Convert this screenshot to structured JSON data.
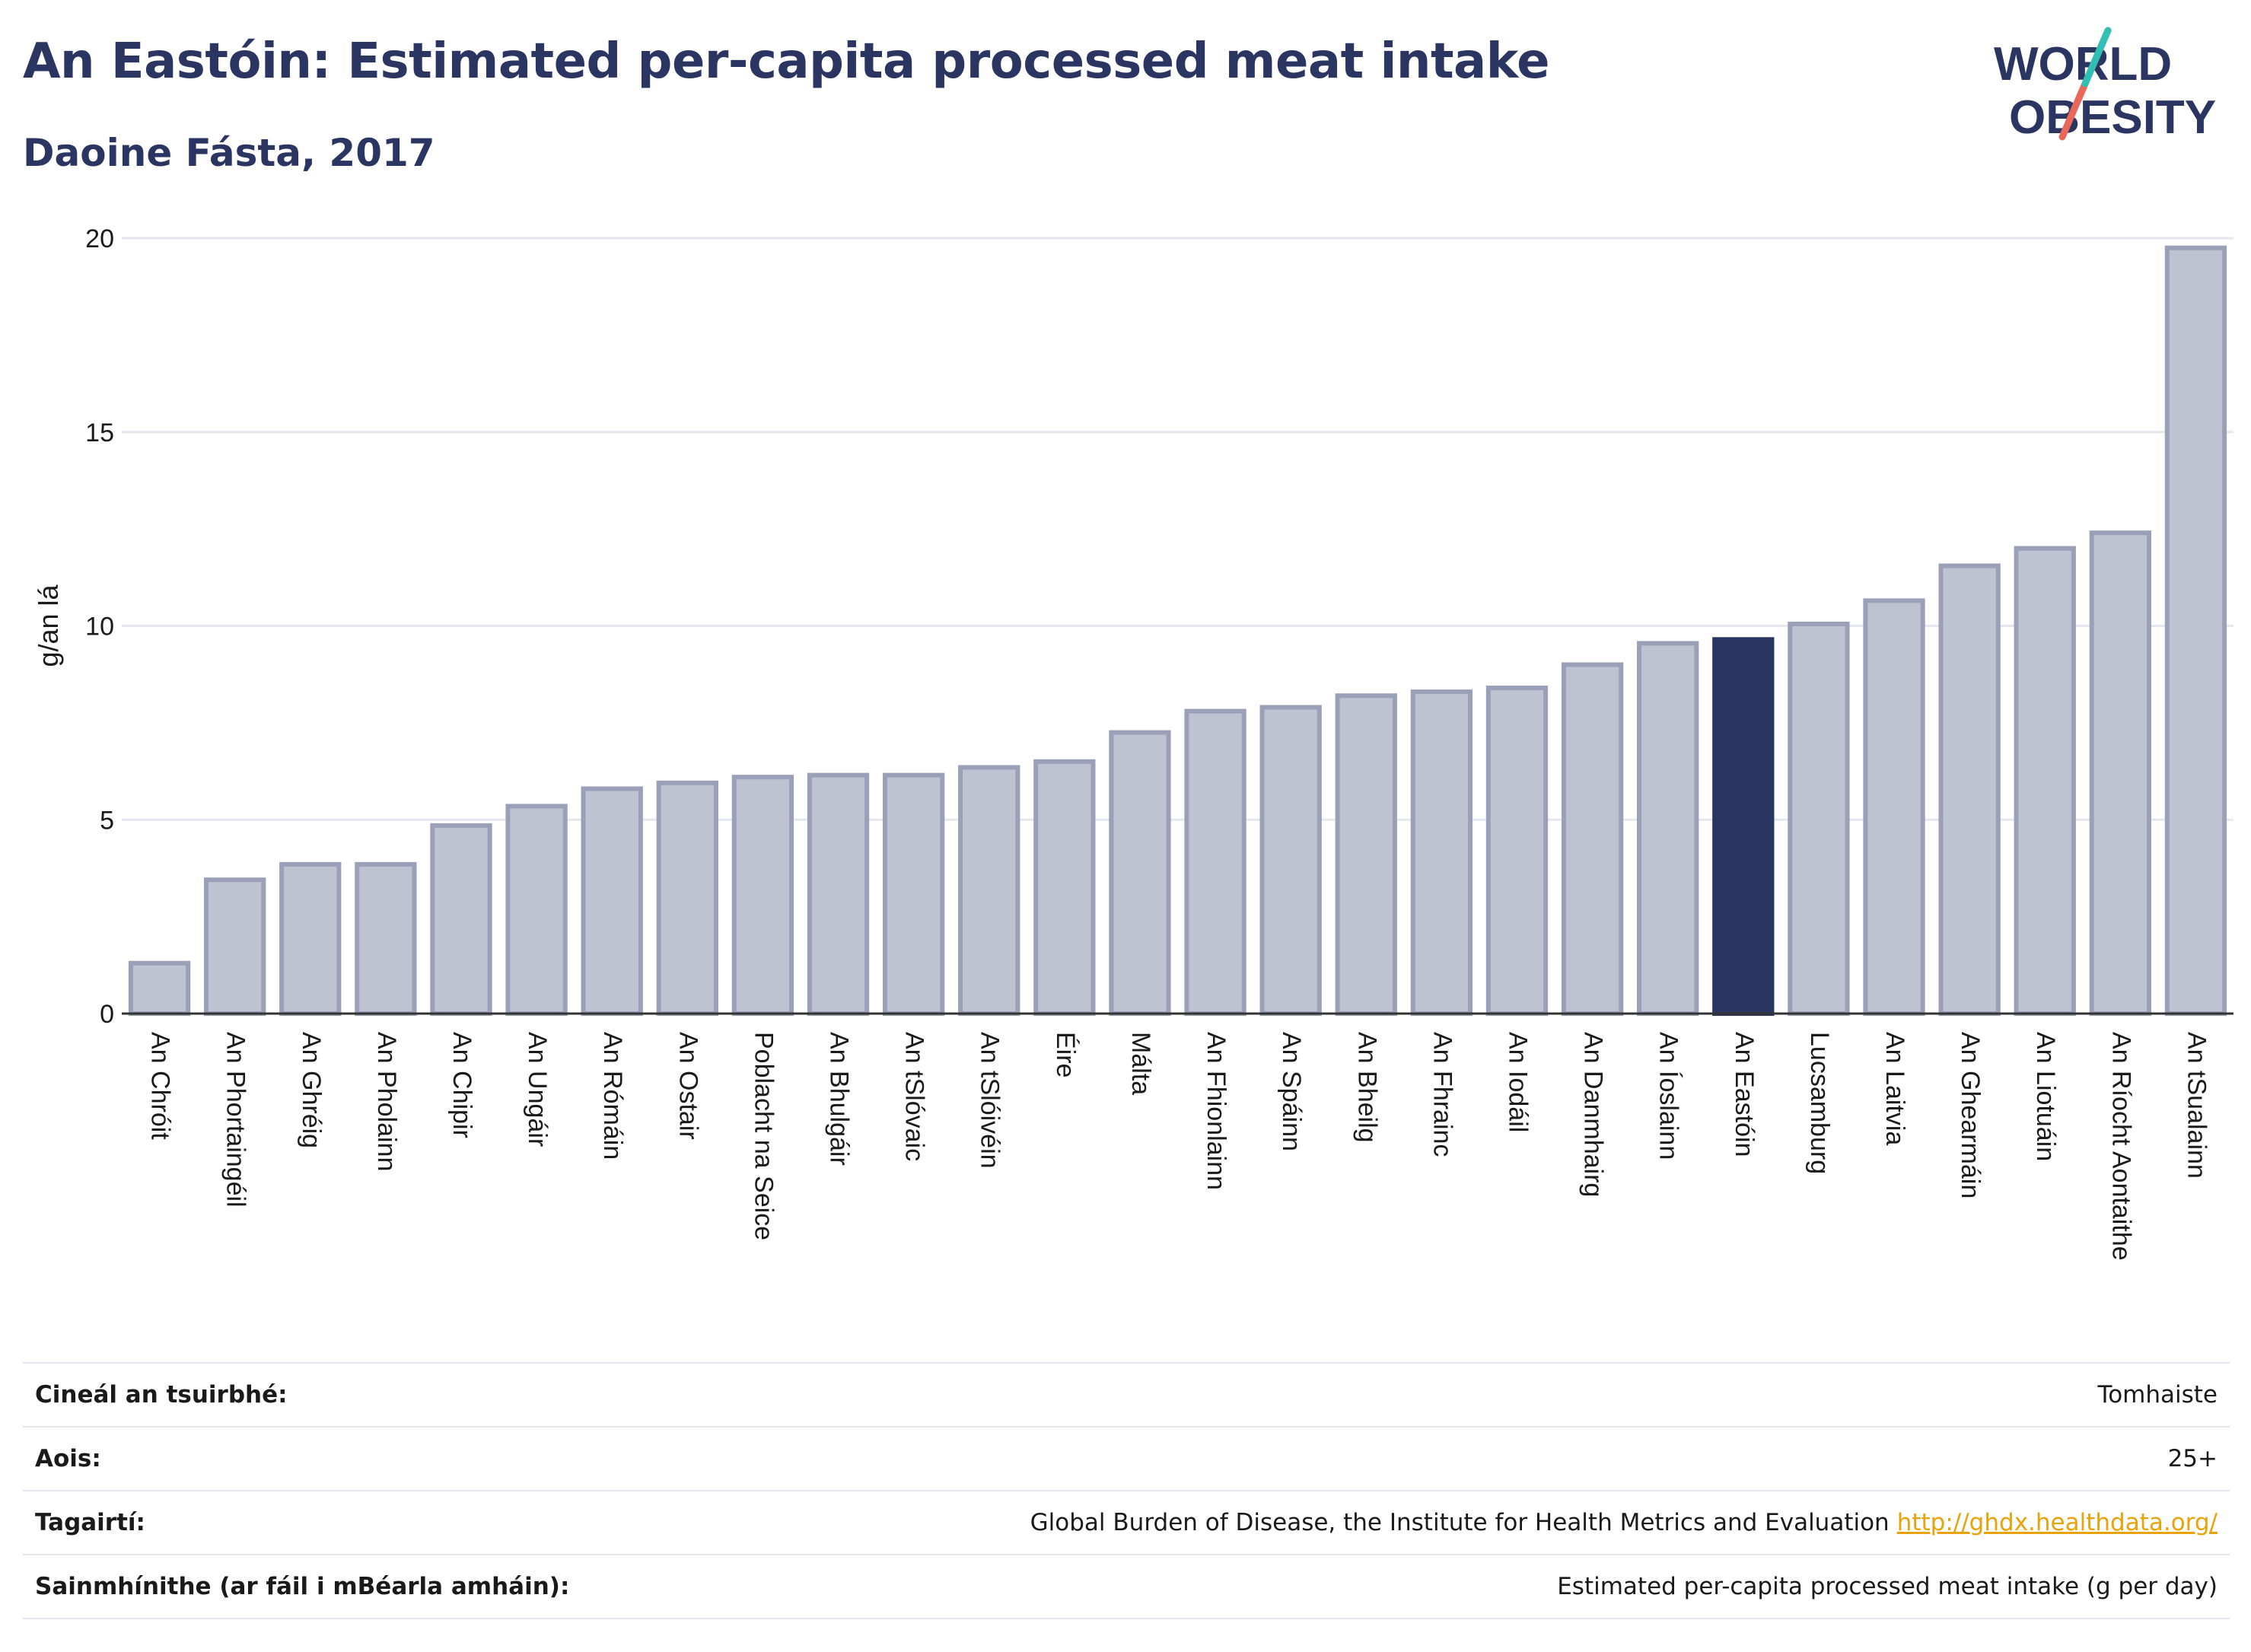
{
  "header": {
    "title": "An Eastóin: Estimated per-capita processed meat intake",
    "subtitle": "Daoine Fásta, 2017"
  },
  "logo": {
    "line1": "WORLD",
    "line2": "OBESITY"
  },
  "colors": {
    "highlight": "#2b3561",
    "bar_fill": "#bfc3d1",
    "bar_stroke": "#9aa0b8",
    "grid": "#e6e7ee",
    "logo_teal": "#2fbfb5",
    "logo_coral": "#e8675a",
    "link": "#e8a30a"
  },
  "chart_data": {
    "type": "bar",
    "ylabel": "g/an lá",
    "ylim": [
      0,
      20
    ],
    "yticks": [
      0,
      5,
      10,
      15,
      20
    ],
    "highlight": "An Eastóin",
    "categories": [
      "An Chróit",
      "An Phortaingéil",
      "An Ghréig",
      "An Pholainn",
      "An Chipir",
      "An Ungáir",
      "An Rómáin",
      "An Ostair",
      "Poblacht na Seice",
      "An Bhulgáir",
      "An tSlóvaic",
      "An tSlóivéin",
      "Éire",
      "Málta",
      "An Fhionlainn",
      "An Spáinn",
      "An Bheilg",
      "An Fhrainc",
      "An Iodáil",
      "An Danmhairg",
      "An Íoslainn",
      "An Eastóin",
      "Lucsamburg",
      "An Laitvia",
      "An Ghearmáin",
      "An Liotuáin",
      "An Ríocht Aontaithe",
      "An tSualainn"
    ],
    "values": [
      1.3,
      3.45,
      3.85,
      3.85,
      4.85,
      5.35,
      5.8,
      5.95,
      6.1,
      6.15,
      6.15,
      6.35,
      6.5,
      7.25,
      7.8,
      7.9,
      8.2,
      8.3,
      8.4,
      9.0,
      9.55,
      9.65,
      10.05,
      10.65,
      11.55,
      12.0,
      12.4,
      19.75
    ]
  },
  "meta": [
    {
      "label": "Cineál an tsuirbhé:",
      "value": "Tomhaiste"
    },
    {
      "label": "Aois:",
      "value": "25+"
    },
    {
      "label": "Tagairtí:",
      "value": "Global Burden of Disease, the Institute for Health Metrics and Evaluation",
      "link": "http://ghdx.healthdata.org/"
    },
    {
      "label": "Sainmhínithe (ar fáil i mBéarla amháin):",
      "value": "Estimated per-capita processed meat intake (g per day)"
    }
  ]
}
